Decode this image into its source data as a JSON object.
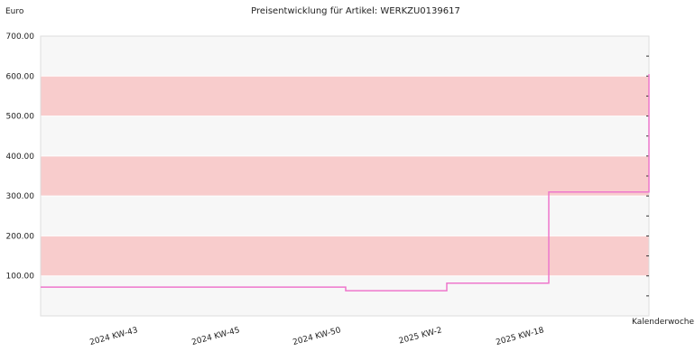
{
  "chart_data": {
    "type": "line",
    "step": true,
    "title": "Preisentwicklung für Artikel: WERKZU0139617",
    "ylabel": "Euro",
    "xlabel": "Kalenderwoche",
    "ylim": [
      0,
      700
    ],
    "yticks": [
      "700.00",
      "600.00",
      "500.00",
      "400.00",
      "300.00",
      "200.00",
      "100.00"
    ],
    "x_tick_labels": [
      "2024 KW-43",
      "2024 KW-45",
      "2024 KW-50",
      "2025 KW-2",
      "2025 KW-18"
    ],
    "series": [
      {
        "values": [
          72,
          72,
          63,
          82,
          310,
          605
        ]
      }
    ],
    "band_colors": [
      "#f7f7f7",
      "#f8cccc"
    ],
    "line_color": "#ee77cc"
  }
}
